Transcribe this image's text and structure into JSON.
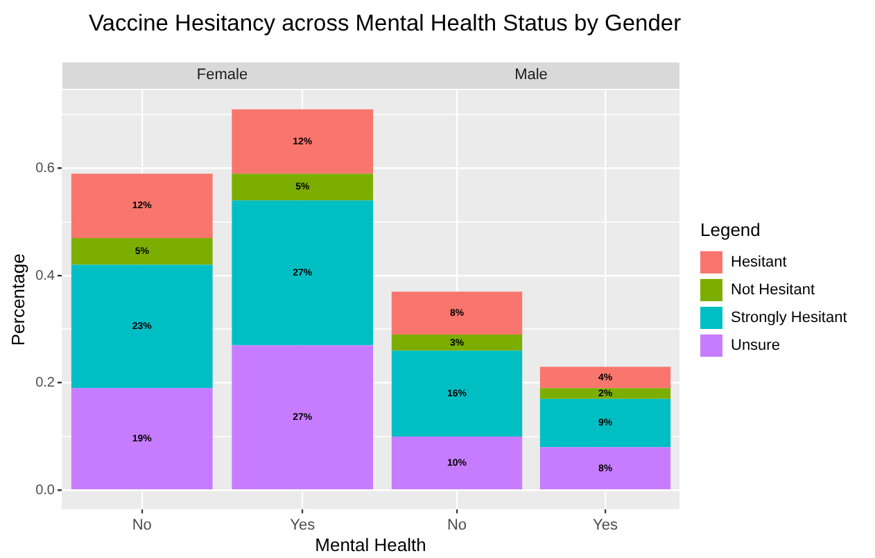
{
  "chart_data": [
    {
      "type": "bar",
      "title": "Vaccine Hesitancy across Mental Health Status by Gender",
      "subtitle": "Female",
      "xlabel": "Mental Health",
      "ylabel": "Percentage",
      "categories": [
        "No",
        "Yes"
      ],
      "stacked": true,
      "ylim": [
        -0.0355,
        0.7455
      ],
      "yticks": [
        {
          "value": 0.0,
          "label": "0.0"
        },
        {
          "value": 0.1,
          "label": null
        },
        {
          "value": 0.2,
          "label": "0.2"
        },
        {
          "value": 0.3,
          "label": null
        },
        {
          "value": 0.4,
          "label": "0.4"
        },
        {
          "value": 0.5,
          "label": null
        },
        {
          "value": 0.6,
          "label": "0.6"
        },
        {
          "value": 0.7,
          "label": null
        }
      ],
      "grid": true,
      "legend": "right",
      "legend_title": "Legend",
      "series": [
        {
          "name": "Unsure",
          "color": "#c77cff",
          "values": [
            0.19,
            0.27
          ],
          "value_labels": [
            "19%",
            "27%"
          ]
        },
        {
          "name": "Strongly Hesitant",
          "color": "#00bfc4",
          "values": [
            0.23,
            0.27
          ],
          "value_labels": [
            "23%",
            "27%"
          ]
        },
        {
          "name": "Not Hesitant",
          "color": "#7cae00",
          "values": [
            0.05,
            0.05
          ],
          "value_labels": [
            "5%",
            "5%"
          ]
        },
        {
          "name": "Hesitant",
          "color": "#f8766d",
          "values": [
            0.12,
            0.12
          ],
          "value_labels": [
            "12%",
            "12%"
          ]
        }
      ]
    },
    {
      "type": "bar",
      "subtitle": "Male",
      "categories": [
        "No",
        "Yes"
      ],
      "stacked": true,
      "tick_labels": "x",
      "ylim": [
        -0.0355,
        0.7455
      ],
      "yticks": [
        0,
        {
          "value": 0.1,
          "label": null
        },
        0.2,
        {
          "value": 0.3,
          "label": null
        },
        0.4,
        {
          "value": 0.5,
          "label": null
        },
        0.6,
        {
          "value": 0.7,
          "label": null
        }
      ],
      "grid": true,
      "series": [
        {
          "color": "#c77cff",
          "values": [
            0.1,
            0.08
          ],
          "value_labels": [
            "10%",
            "8%"
          ]
        },
        {
          "color": "#00bfc4",
          "values": [
            0.16,
            0.09
          ],
          "value_labels": [
            "16%",
            "9%"
          ]
        },
        {
          "color": "#7cae00",
          "values": [
            0.03,
            0.02
          ],
          "value_labels": [
            "3%",
            "2%"
          ]
        },
        {
          "color": "#f8766d",
          "values": [
            0.08,
            0.04
          ],
          "value_labels": [
            "8%",
            "4%"
          ]
        }
      ]
    }
  ]
}
